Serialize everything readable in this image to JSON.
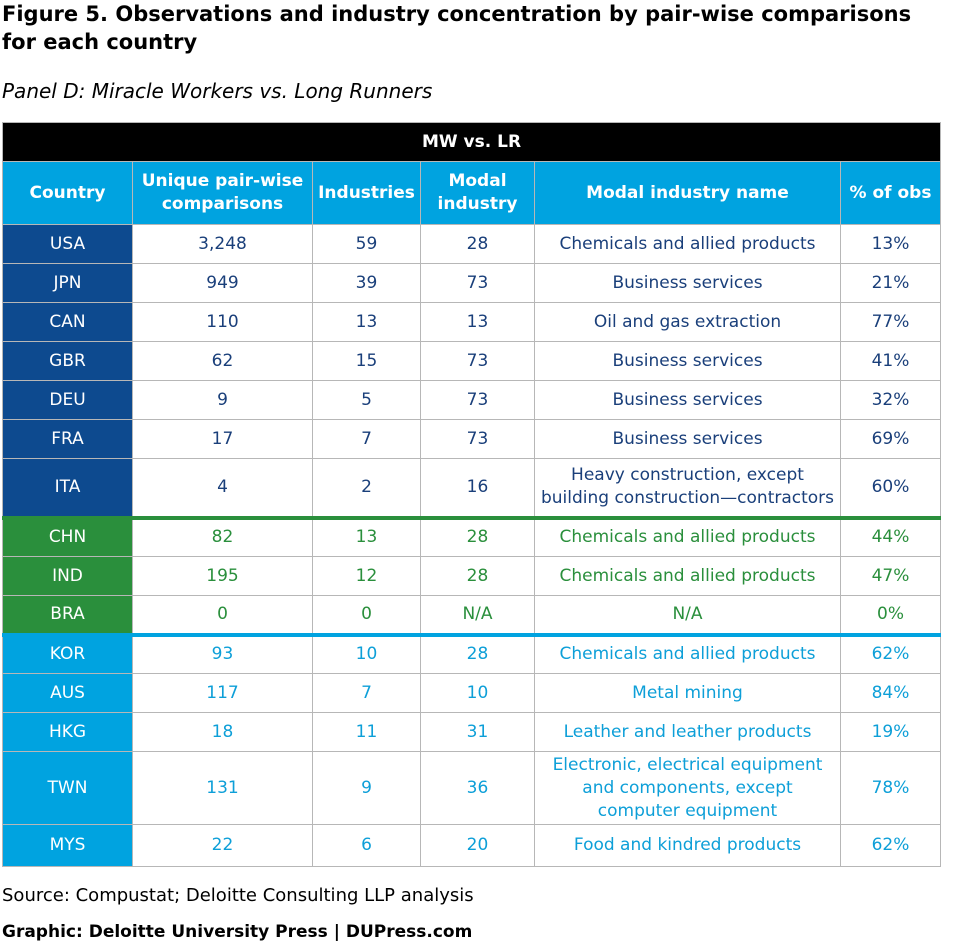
{
  "figure_title": "Figure 5. Observations and industry concentration by pair-wise comparisons for each country",
  "panel_title": "Panel D:  Miracle Workers vs. Long Runners",
  "table": {
    "group_header": "MW vs. LR",
    "columns": [
      "Country",
      "Unique pair-wise comparisons",
      "Industries",
      "Modal industry",
      "Modal industry name",
      "% of obs"
    ],
    "rows": [
      {
        "country": "USA",
        "comparisons": "3,248",
        "industries": "59",
        "modal": "28",
        "name": "Chemicals and allied products",
        "pct": "13%"
      },
      {
        "country": "JPN",
        "comparisons": "949",
        "industries": "39",
        "modal": "73",
        "name": "Business services",
        "pct": "21%"
      },
      {
        "country": "CAN",
        "comparisons": "110",
        "industries": "13",
        "modal": "13",
        "name": "Oil and gas extraction",
        "pct": "77%"
      },
      {
        "country": "GBR",
        "comparisons": "62",
        "industries": "15",
        "modal": "73",
        "name": "Business services",
        "pct": "41%"
      },
      {
        "country": "DEU",
        "comparisons": "9",
        "industries": "5",
        "modal": "73",
        "name": "Business services",
        "pct": "32%"
      },
      {
        "country": "FRA",
        "comparisons": "17",
        "industries": "7",
        "modal": "73",
        "name": "Business services",
        "pct": "69%"
      },
      {
        "country": "ITA",
        "comparisons": "4",
        "industries": "2",
        "modal": "16",
        "name": "Heavy construction, except building construction—contractors",
        "pct": "60%"
      },
      {
        "country": "CHN",
        "comparisons": "82",
        "industries": "13",
        "modal": "28",
        "name": "Chemicals and allied products",
        "pct": "44%"
      },
      {
        "country": "IND",
        "comparisons": "195",
        "industries": "12",
        "modal": "28",
        "name": "Chemicals and allied products",
        "pct": "47%"
      },
      {
        "country": "BRA",
        "comparisons": "0",
        "industries": "0",
        "modal": "N/A",
        "name": "N/A",
        "pct": "0%"
      },
      {
        "country": "KOR",
        "comparisons": "93",
        "industries": "10",
        "modal": "28",
        "name": "Chemicals and allied products",
        "pct": "62%"
      },
      {
        "country": "AUS",
        "comparisons": "117",
        "industries": "7",
        "modal": "10",
        "name": "Metal mining",
        "pct": "84%"
      },
      {
        "country": "HKG",
        "comparisons": "18",
        "industries": "11",
        "modal": "31",
        "name": "Leather and leather products",
        "pct": "19%"
      },
      {
        "country": "TWN",
        "comparisons": "131",
        "industries": "9",
        "modal": "36",
        "name": "Electronic, electrical equipment and components, except computer equipment",
        "pct": "78%"
      },
      {
        "country": "MYS",
        "comparisons": "22",
        "industries": "6",
        "modal": "20",
        "name": "Food and kindred products",
        "pct": "62%"
      }
    ]
  },
  "colors": {
    "developed": "#0d4a8f",
    "emerging": "#2a8f3c",
    "asia": "#00a3e0",
    "header": "#00a3e0",
    "top_header": "#000000"
  },
  "source": "Source: Compustat; Deloitte Consulting LLP analysis",
  "graphic_credit": "Graphic: Deloitte University Press  |  DUPress.com"
}
